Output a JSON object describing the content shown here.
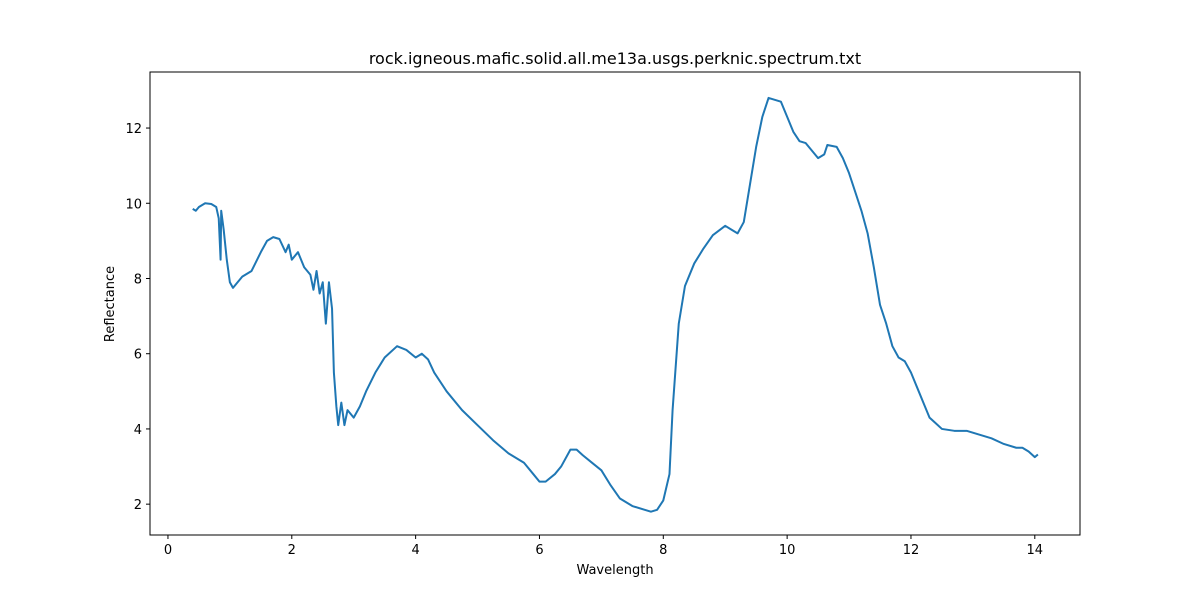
{
  "chart_data": {
    "type": "line",
    "title": "rock.igneous.mafic.solid.all.me13a.usgs.perknic.spectrum.txt",
    "x_label": "Wavelength",
    "y_label": "Reflectance",
    "xlim": [
      -0.29,
      14.73
    ],
    "ylim": [
      1.18,
      13.49
    ],
    "xticks": [
      0,
      2,
      4,
      6,
      8,
      10,
      12,
      14
    ],
    "yticks": [
      2,
      4,
      6,
      8,
      10,
      12
    ],
    "series": [
      {
        "color": "#1f77b4",
        "x": [
          0.4,
          0.45,
          0.5,
          0.6,
          0.7,
          0.78,
          0.82,
          0.85,
          0.86,
          0.9,
          0.95,
          1.0,
          1.05,
          1.1,
          1.2,
          1.35,
          1.5,
          1.6,
          1.7,
          1.8,
          1.9,
          1.95,
          2.0,
          2.1,
          2.2,
          2.3,
          2.35,
          2.4,
          2.45,
          2.5,
          2.55,
          2.6,
          2.65,
          2.68,
          2.72,
          2.75,
          2.8,
          2.85,
          2.9,
          3.0,
          3.1,
          3.2,
          3.35,
          3.5,
          3.7,
          3.85,
          4.0,
          4.1,
          4.2,
          4.3,
          4.5,
          4.75,
          5.0,
          5.25,
          5.5,
          5.75,
          5.9,
          6.0,
          6.1,
          6.25,
          6.35,
          6.5,
          6.6,
          6.7,
          6.85,
          7.0,
          7.15,
          7.3,
          7.5,
          7.7,
          7.8,
          7.9,
          8.0,
          8.1,
          8.15,
          8.25,
          8.35,
          8.5,
          8.65,
          8.8,
          9.0,
          9.1,
          9.2,
          9.3,
          9.4,
          9.5,
          9.6,
          9.7,
          9.8,
          9.9,
          10.0,
          10.1,
          10.2,
          10.3,
          10.4,
          10.5,
          10.6,
          10.65,
          10.8,
          10.9,
          11.0,
          11.1,
          11.2,
          11.3,
          11.4,
          11.5,
          11.6,
          11.7,
          11.8,
          11.9,
          12.0,
          12.1,
          12.2,
          12.3,
          12.4,
          12.5,
          12.7,
          12.9,
          13.1,
          13.3,
          13.5,
          13.7,
          13.8,
          13.9,
          14.0,
          14.05
        ],
        "values": [
          9.85,
          9.8,
          9.9,
          10.0,
          9.98,
          9.9,
          9.6,
          8.5,
          9.8,
          9.3,
          8.5,
          7.9,
          7.75,
          7.85,
          8.05,
          8.2,
          8.7,
          9.0,
          9.1,
          9.05,
          8.7,
          8.9,
          8.5,
          8.7,
          8.3,
          8.1,
          7.7,
          8.2,
          7.6,
          7.9,
          6.8,
          7.9,
          7.2,
          5.5,
          4.6,
          4.1,
          4.7,
          4.1,
          4.5,
          4.3,
          4.6,
          5.0,
          5.5,
          5.9,
          6.2,
          6.1,
          5.9,
          6.0,
          5.85,
          5.5,
          5.0,
          4.5,
          4.1,
          3.7,
          3.35,
          3.1,
          2.8,
          2.6,
          2.6,
          2.8,
          3.0,
          3.45,
          3.45,
          3.3,
          3.1,
          2.9,
          2.5,
          2.15,
          1.95,
          1.85,
          1.8,
          1.85,
          2.1,
          2.8,
          4.5,
          6.8,
          7.8,
          8.4,
          8.8,
          9.15,
          9.4,
          9.3,
          9.2,
          9.5,
          10.5,
          11.5,
          12.3,
          12.8,
          12.75,
          12.7,
          12.3,
          11.9,
          11.65,
          11.6,
          11.4,
          11.2,
          11.3,
          11.55,
          11.5,
          11.2,
          10.8,
          10.3,
          9.8,
          9.2,
          8.3,
          7.3,
          6.8,
          6.2,
          5.9,
          5.8,
          5.5,
          5.1,
          4.7,
          4.3,
          4.15,
          4.0,
          3.95,
          3.95,
          3.85,
          3.75,
          3.6,
          3.5,
          3.5,
          3.4,
          3.25,
          3.32
        ]
      }
    ]
  }
}
